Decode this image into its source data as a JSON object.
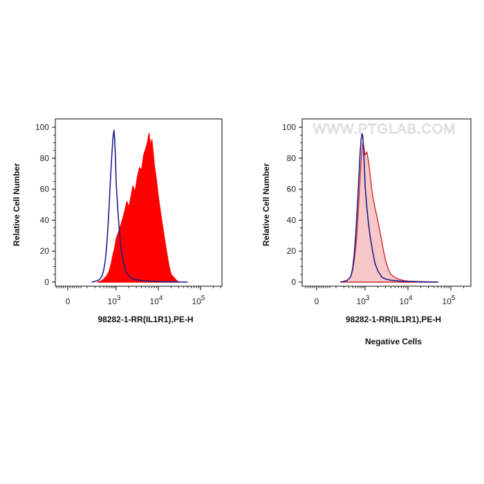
{
  "watermark": "WWW.PTGLAB.COM",
  "chart_data": [
    {
      "type": "area",
      "panel": "left",
      "xlabel": "98282-1-RR(IL1R1),PE-H",
      "ylabel": "Relative Cell Number",
      "caption": "",
      "x_scale": "logicle",
      "x_ticks": [
        "0",
        "10^3",
        "10^4",
        "10^5"
      ],
      "y_ticks": [
        0,
        20,
        40,
        60,
        80,
        100
      ],
      "ylim": [
        0,
        100
      ],
      "series": [
        {
          "fill": "#ff0000",
          "stroke": "#ff0000",
          "filled": true,
          "x": [
            250,
            300,
            350,
            400,
            500,
            600,
            700,
            800,
            900,
            1000,
            1200,
            1400,
            1600,
            1800,
            2000,
            2200,
            2500,
            2800,
            3200,
            3600,
            4000,
            4500,
            5000,
            5500,
            6000,
            6500,
            7000,
            7500,
            8000,
            9000,
            10000,
            12000,
            14000,
            16000,
            18000,
            20000,
            25000,
            30000
          ],
          "y": [
            0,
            0.5,
            1,
            2,
            4,
            7,
            12,
            18,
            22,
            28,
            34,
            40,
            46,
            52,
            48,
            54,
            62,
            58,
            68,
            74,
            72,
            82,
            86,
            90,
            96,
            88,
            92,
            84,
            76,
            66,
            55,
            40,
            28,
            18,
            10,
            5,
            2,
            0
          ]
        },
        {
          "fill": "none",
          "stroke": "#1c1c8c",
          "filled": false,
          "x": [
            150,
            200,
            250,
            300,
            350,
            400,
            450,
            500,
            550,
            600,
            650,
            700,
            750,
            800,
            850,
            900,
            950,
            1000,
            1100,
            1200,
            1300,
            1500,
            1700,
            2000,
            2500,
            3000,
            4000,
            5000,
            7000,
            10000,
            20000,
            50000
          ],
          "y": [
            0,
            0.5,
            1,
            2,
            4,
            8,
            14,
            24,
            36,
            50,
            64,
            76,
            86,
            94,
            98,
            92,
            80,
            64,
            46,
            32,
            22,
            12,
            7,
            4,
            2,
            1.5,
            1,
            0.8,
            0.5,
            0.3,
            0.2,
            0
          ]
        }
      ]
    },
    {
      "type": "area",
      "panel": "right",
      "xlabel": "98282-1-RR(IL1R1),PE-H",
      "ylabel": "Relative Cell Number",
      "caption": "Negative Cells",
      "x_scale": "logicle",
      "x_ticks": [
        "0",
        "10^3",
        "10^4",
        "10^5"
      ],
      "y_ticks": [
        0,
        20,
        40,
        60,
        80,
        100
      ],
      "ylim": [
        0,
        100
      ],
      "series": [
        {
          "fill": "#f7c8c8",
          "stroke": "#cc2a2a",
          "filled": true,
          "x": [
            150,
            200,
            250,
            300,
            350,
            400,
            450,
            500,
            550,
            600,
            650,
            700,
            750,
            800,
            850,
            900,
            1000,
            1100,
            1200,
            1300,
            1400,
            1500,
            1700,
            1900,
            2100,
            2400,
            2700,
            3000,
            3500,
            4000,
            5000,
            6000,
            8000,
            10000,
            20000,
            50000
          ],
          "y": [
            0,
            0.5,
            1,
            2,
            4,
            8,
            14,
            22,
            32,
            44,
            56,
            68,
            78,
            86,
            90,
            88,
            82,
            84,
            78,
            70,
            62,
            56,
            48,
            42,
            36,
            28,
            20,
            14,
            8,
            5,
            3,
            2,
            1,
            0.6,
            0.3,
            0
          ]
        },
        {
          "fill": "none",
          "stroke": "#1c1c8c",
          "filled": false,
          "x": [
            150,
            200,
            250,
            300,
            350,
            400,
            450,
            500,
            550,
            600,
            650,
            700,
            750,
            800,
            850,
            900,
            950,
            1000,
            1100,
            1200,
            1300,
            1500,
            1700,
            2000,
            2500,
            3000,
            4000,
            5000,
            7000,
            10000,
            20000,
            50000
          ],
          "y": [
            0,
            0.5,
            1,
            2,
            4,
            9,
            18,
            30,
            44,
            58,
            72,
            84,
            92,
            96,
            94,
            86,
            74,
            62,
            48,
            38,
            30,
            20,
            12,
            7,
            3,
            2,
            1.2,
            1,
            0.6,
            0.4,
            0.2,
            0
          ]
        }
      ]
    }
  ]
}
